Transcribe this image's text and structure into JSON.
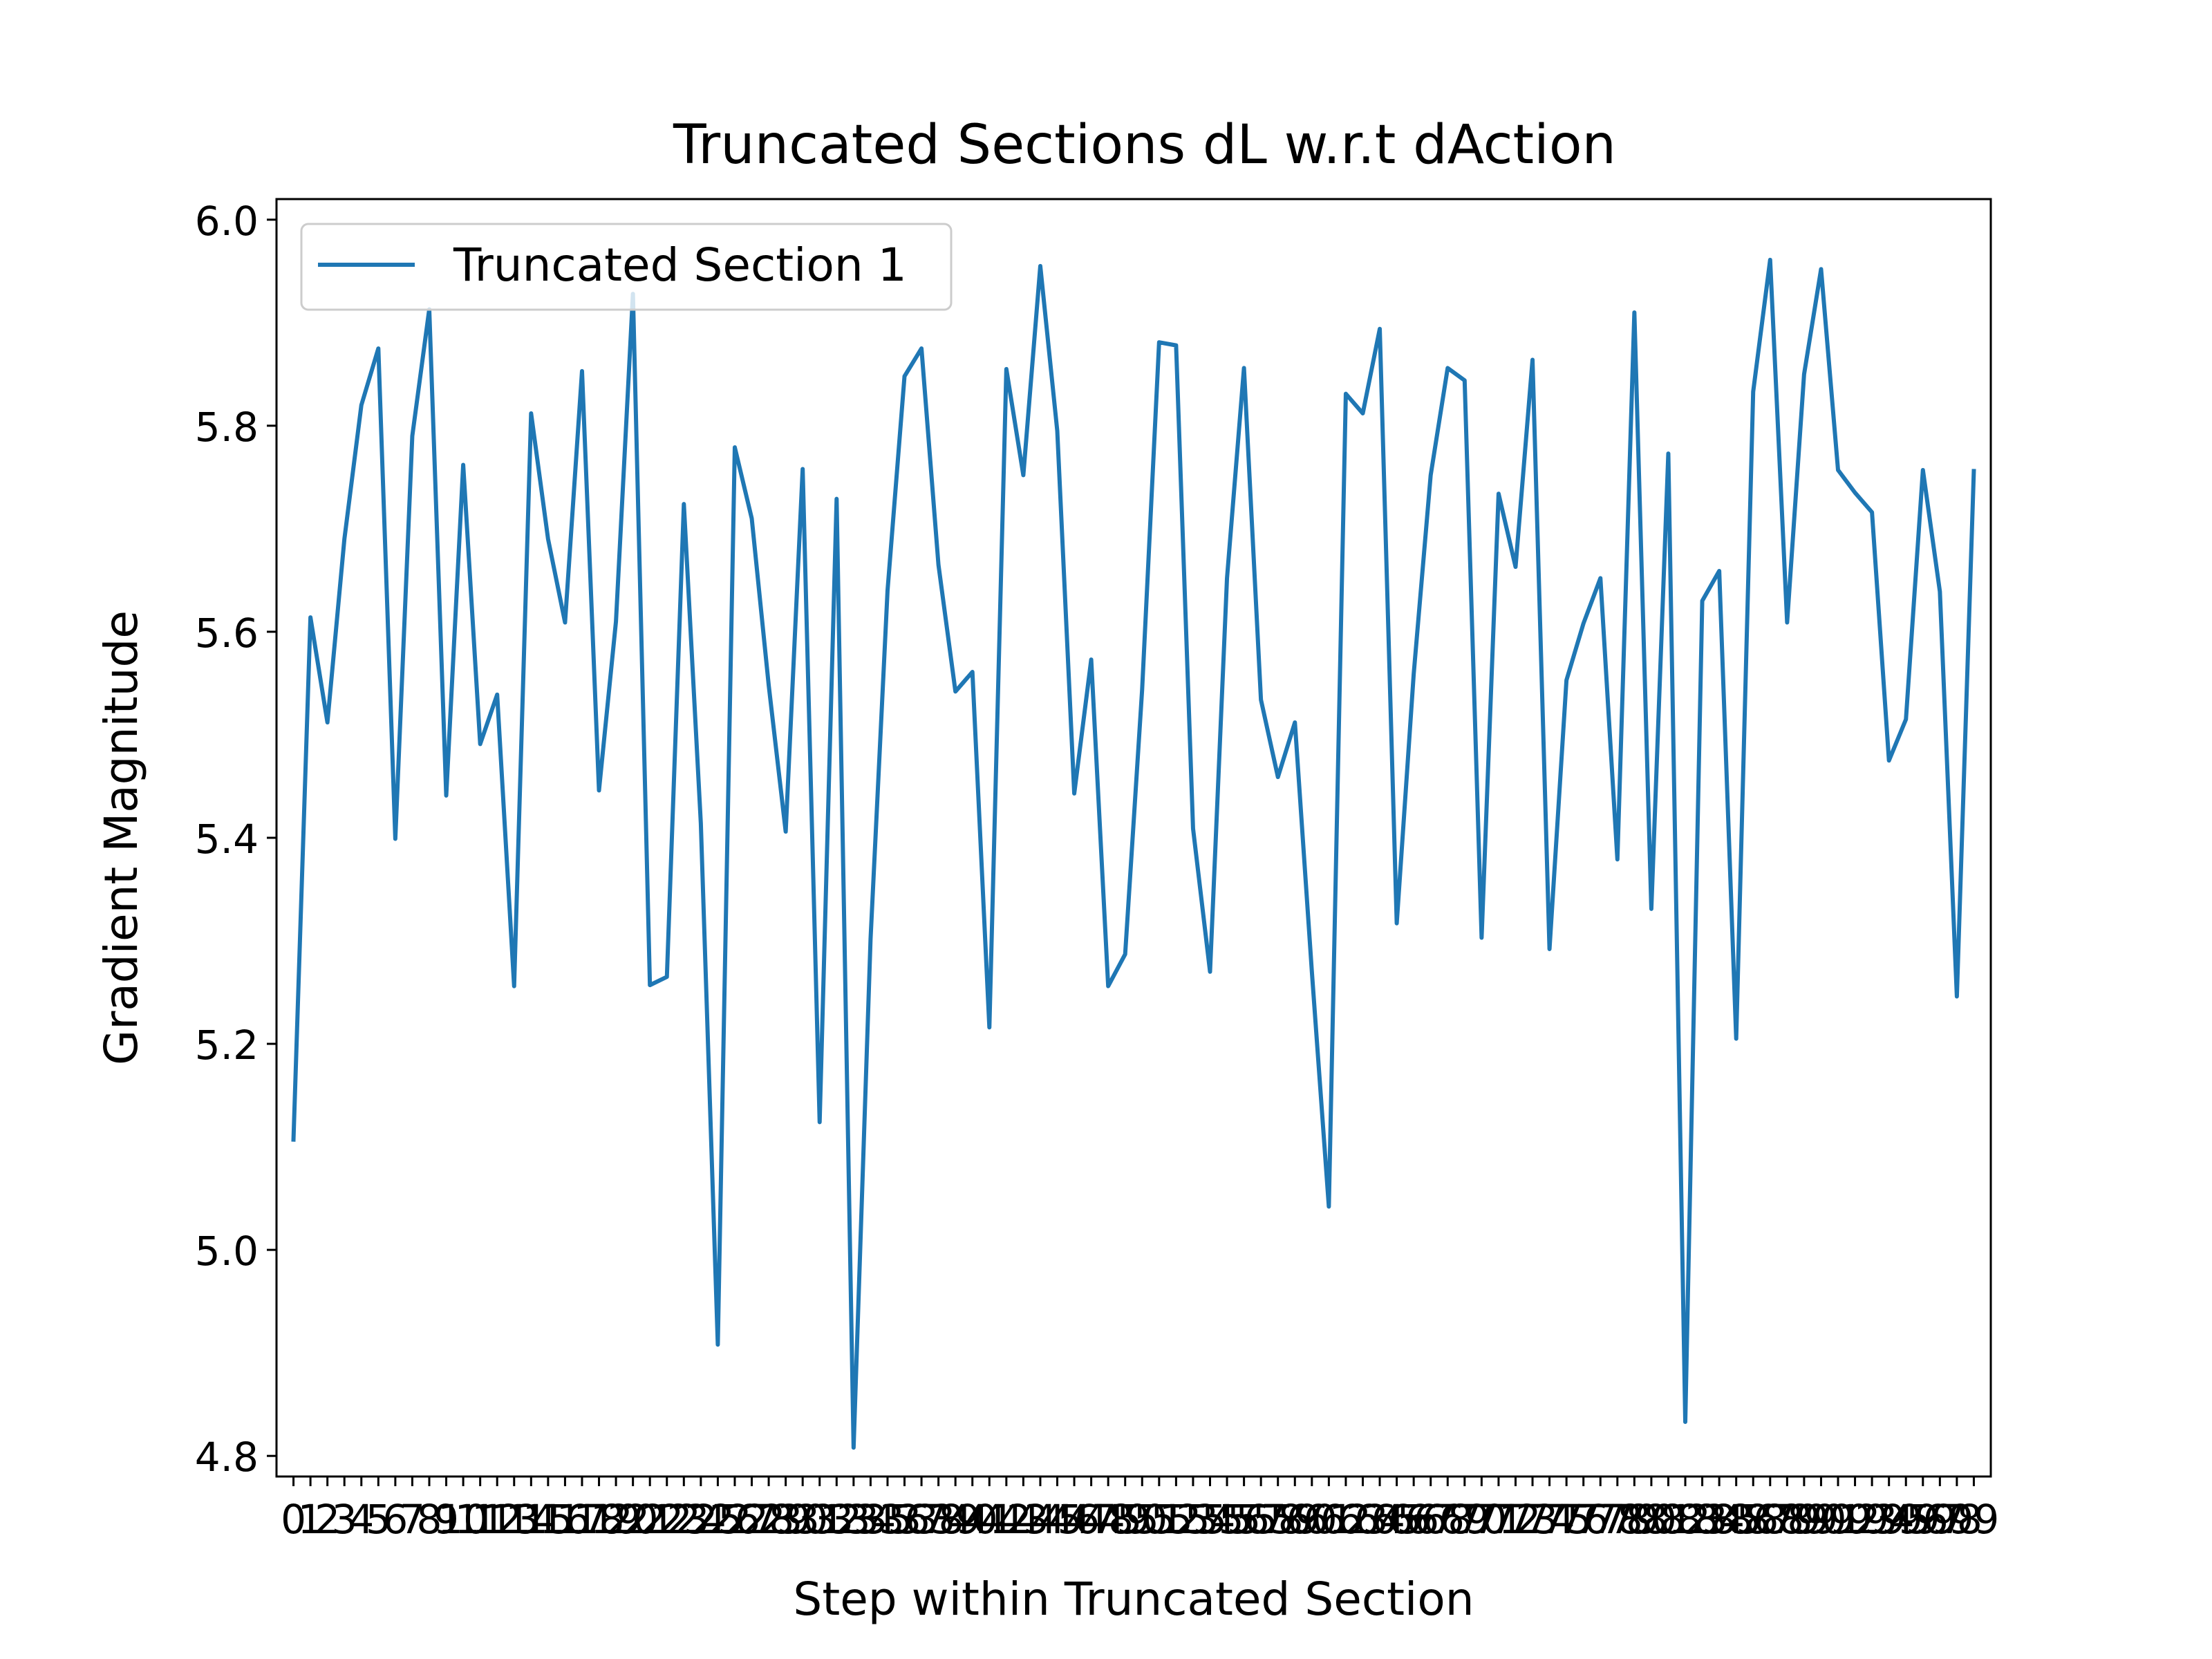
{
  "chart_data": {
    "type": "line",
    "title": "Truncated Sections dL w.r.t dAction",
    "xlabel": "Step within Truncated Section",
    "ylabel": "Gradient Magnitude",
    "ylim": [
      4.78,
      6.02
    ],
    "xlim": [
      -1,
      100
    ],
    "y_ticks": [
      4.8,
      5.0,
      5.2,
      5.4,
      5.6,
      5.8,
      6.0
    ],
    "y_tick_labels": [
      "4.8",
      "5.0",
      "5.2",
      "5.4",
      "5.6",
      "5.8",
      "6.0"
    ],
    "x_tick_labels": [
      "0",
      "1",
      "2",
      "3",
      "4",
      "5",
      "6",
      "7",
      "8",
      "9",
      "10",
      "11",
      "12",
      "13",
      "14",
      "15",
      "16",
      "17",
      "18",
      "19",
      "20",
      "21",
      "22",
      "23",
      "24",
      "25",
      "26",
      "27",
      "28",
      "29",
      "30",
      "31",
      "32",
      "33",
      "34",
      "35",
      "36",
      "37",
      "38",
      "39",
      "40",
      "41",
      "42",
      "43",
      "44",
      "45",
      "46",
      "47",
      "48",
      "49",
      "50",
      "51",
      "52",
      "53",
      "54",
      "55",
      "56",
      "57",
      "58",
      "59",
      "60",
      "61",
      "62",
      "63",
      "64",
      "65",
      "66",
      "67",
      "68",
      "69",
      "70",
      "71",
      "72",
      "73",
      "74",
      "75",
      "76",
      "77",
      "78",
      "79",
      "80",
      "81",
      "82",
      "83",
      "84",
      "85",
      "86",
      "87",
      "88",
      "89",
      "90",
      "91",
      "92",
      "93",
      "94",
      "95",
      "96",
      "97",
      "98",
      "99"
    ],
    "grid": false,
    "legend_position": "upper-left",
    "colors": {
      "series": "#1f77b4",
      "axes": "#000000",
      "legend_border": "#cccccc"
    },
    "series": [
      {
        "name": "Truncated Section 1",
        "x": [
          0,
          1,
          2,
          3,
          4,
          5,
          6,
          7,
          8,
          9,
          10,
          11,
          12,
          13,
          14,
          15,
          16,
          17,
          18,
          19,
          20,
          21,
          22,
          23,
          24,
          25,
          26,
          27,
          28,
          29,
          30,
          31,
          32,
          33,
          34,
          35,
          36,
          37,
          38,
          39,
          40,
          41,
          42,
          43,
          44,
          45,
          46,
          47,
          48,
          49,
          50,
          51,
          52,
          53,
          54,
          55,
          56,
          57,
          58,
          59,
          60,
          61,
          62,
          63,
          64,
          65,
          66,
          67,
          68,
          69,
          70,
          71,
          72,
          73,
          74,
          75,
          76,
          77,
          78,
          79,
          80,
          81,
          82,
          83,
          84,
          85,
          86,
          87,
          88,
          89,
          90,
          91,
          92,
          93,
          94,
          95,
          96,
          97,
          98,
          99
        ],
        "values": [
          5.107,
          5.614,
          5.512,
          5.69,
          5.82,
          5.875,
          5.399,
          5.79,
          5.913,
          5.441,
          5.762,
          5.491,
          5.539,
          5.256,
          5.812,
          5.69,
          5.609,
          5.853,
          5.446,
          5.61,
          5.928,
          5.257,
          5.265,
          5.724,
          5.414,
          4.908,
          5.779,
          5.71,
          5.548,
          5.406,
          5.758,
          5.124,
          5.729,
          4.808,
          5.302,
          5.64,
          5.848,
          5.875,
          5.665,
          5.542,
          5.561,
          5.216,
          5.855,
          5.752,
          5.955,
          5.795,
          5.443,
          5.573,
          5.256,
          5.287,
          5.544,
          5.881,
          5.878,
          5.409,
          5.27,
          5.652,
          5.856,
          5.534,
          5.459,
          5.512,
          5.27,
          5.042,
          5.831,
          5.812,
          5.894,
          5.317,
          5.559,
          5.752,
          5.856,
          5.844,
          5.303,
          5.734,
          5.663,
          5.864,
          5.292,
          5.553,
          5.608,
          5.652,
          5.379,
          5.91,
          5.331,
          5.773,
          4.833,
          5.63,
          5.659,
          5.205,
          5.833,
          5.961,
          5.609,
          5.85,
          5.952,
          5.757,
          5.735,
          5.716,
          5.475,
          5.515,
          5.757,
          5.639,
          5.246,
          5.756
        ]
      }
    ]
  }
}
